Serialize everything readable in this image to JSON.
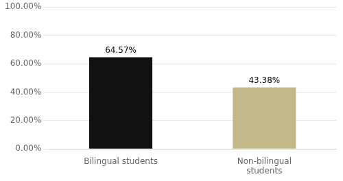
{
  "chart_data": {
    "type": "bar",
    "categories": [
      "Bilingual students",
      "Non-bilingual\nstudents"
    ],
    "values": [
      64.57,
      43.38
    ],
    "value_labels": [
      "64.57%",
      "43.38%"
    ],
    "data_labels": true,
    "colors": [
      "#111111",
      "#C4B98A"
    ],
    "ylim": [
      0,
      100
    ],
    "yticks": [
      {
        "value": 0,
        "label": "0.00%"
      },
      {
        "value": 20,
        "label": "20.00%"
      },
      {
        "value": 40,
        "label": "40.00%"
      },
      {
        "value": 60,
        "label": "60.00%"
      },
      {
        "value": 80,
        "label": "80.00%"
      },
      {
        "value": 100,
        "label": "100.00%"
      }
    ],
    "grid": true
  }
}
